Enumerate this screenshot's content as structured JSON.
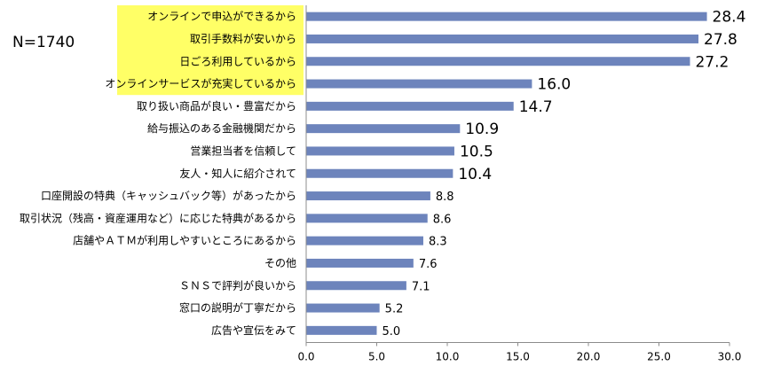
{
  "sample_note": "N=1740",
  "chart_data": {
    "type": "bar",
    "orientation": "horizontal",
    "title": "",
    "xlabel": "",
    "ylabel": "",
    "xlim": [
      0,
      30
    ],
    "xticks": [
      "0.0",
      "5.0",
      "10.0",
      "15.0",
      "20.0",
      "25.0",
      "30.0"
    ],
    "grid": false,
    "legend": "none",
    "bar_color": "#6d84bc",
    "highlight_color": "#ffff66",
    "categories": [
      "オンラインで申込ができるから",
      "取引手数料が安いから",
      "日ごろ利用しているから",
      "オンラインサービスが充実しているから",
      "取り扱い商品が良い・豊富だから",
      "給与振込のある金融機関だから",
      "営業担当者を信頼して",
      "友人・知人に紹介されて",
      "口座開設の特典（キャッシュバック等）があったから",
      "取引状況（残高・資産運用など）に応じた特典があるから",
      "店舗やＡＴＭが利用しやすいところにあるから",
      "その他",
      "ＳＮＳで評判が良いから",
      "窓口の説明が丁寧だから",
      "広告や宣伝をみて"
    ],
    "values": [
      28.4,
      27.8,
      27.2,
      16.0,
      14.7,
      10.9,
      10.5,
      10.4,
      8.8,
      8.6,
      8.3,
      7.6,
      7.1,
      5.2,
      5.0
    ],
    "value_labels": [
      "28.4",
      "27.8",
      "27.2",
      "16.0",
      "14.7",
      "10.9",
      "10.5",
      "10.4",
      "8.8",
      "8.6",
      "8.3",
      "7.6",
      "7.1",
      "5.2",
      "5.0"
    ],
    "highlighted_categories": [
      0,
      1,
      2,
      3
    ]
  }
}
